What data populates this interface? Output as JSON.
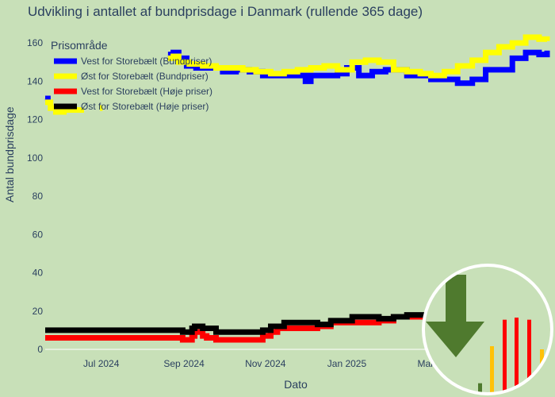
{
  "chart_data": {
    "type": "line",
    "title": "Udvikling i antallet af bundprisdage i Danmark (rullende 365 dage)",
    "xlabel": "Dato",
    "ylabel": "Antal bundprisdage",
    "ylim": [
      0,
      170
    ],
    "y_ticks": [
      0,
      20,
      40,
      60,
      80,
      100,
      120,
      140,
      160
    ],
    "x_ticks": [
      {
        "date": "2024-07-01",
        "label": "Jul 2024"
      },
      {
        "date": "2024-09-01",
        "label": "Sep 2024"
      },
      {
        "date": "2024-11-01",
        "label": "Nov 2024"
      },
      {
        "date": "2025-01-01",
        "label": "Jan 2025"
      },
      {
        "date": "2025-03-01",
        "label": "Mar"
      }
    ],
    "x_range": [
      "2024-05-20",
      "2025-05-31"
    ],
    "grid": false,
    "legend": {
      "title": "Prisområde",
      "placement": "top-left"
    },
    "series": [
      {
        "name": "Vest for Storebælt (Bundpriser)",
        "color": "#0000ff",
        "segments": [
          {
            "x": [
              "2024-05-20",
              "2024-05-22"
            ],
            "y": [
              131,
              130
            ]
          },
          {
            "x": [
              "2024-08-20",
              "2024-08-24",
              "2024-08-28",
              "2024-09-03",
              "2024-09-10",
              "2024-09-20",
              "2024-09-30",
              "2024-10-10",
              "2024-10-20",
              "2024-10-30",
              "2024-11-10",
              "2024-11-20",
              "2024-12-01",
              "2024-12-05",
              "2024-12-15",
              "2024-12-25",
              "2025-01-01",
              "2025-01-10",
              "2025-01-20",
              "2025-01-30",
              "2025-02-05",
              "2025-02-15",
              "2025-02-25",
              "2025-03-05",
              "2025-03-15",
              "2025-03-25",
              "2025-04-05",
              "2025-04-15",
              "2025-04-25",
              "2025-05-05",
              "2025-05-15",
              "2025-05-25",
              "2025-05-31"
            ],
            "y": [
              154,
              155,
              152,
              148,
              147,
              147,
              145,
              146,
              145,
              143,
              143,
              143,
              140,
              143,
              143,
              144,
              147,
              143,
              145,
              146,
              146,
              143,
              143,
              141,
              141,
              139,
              141,
              146,
              146,
              152,
              155,
              154,
              156
            ]
          }
        ]
      },
      {
        "name": "Øst for Storebælt (Bundpriser)",
        "color": "#ffff00",
        "segments": [
          {
            "x": [
              "2024-05-20",
              "2024-05-24",
              "2024-05-28",
              "2024-06-03",
              "2024-06-10",
              "2024-06-16"
            ],
            "y": [
              129,
              126,
              124,
              125,
              125,
              126
            ]
          },
          {
            "x": [
              "2024-06-30",
              "2024-07-02"
            ],
            "y": [
              126,
              126
            ]
          },
          {
            "x": [
              "2024-08-20",
              "2024-08-24",
              "2024-08-28",
              "2024-09-05",
              "2024-09-15",
              "2024-09-25",
              "2024-10-05",
              "2024-10-15",
              "2024-10-25",
              "2024-11-05",
              "2024-11-15",
              "2024-11-25",
              "2024-12-05",
              "2024-12-15",
              "2024-12-25",
              "2025-01-05",
              "2025-01-15",
              "2025-01-25",
              "2025-02-05",
              "2025-02-15",
              "2025-02-25",
              "2025-03-05",
              "2025-03-15",
              "2025-03-25",
              "2025-04-05",
              "2025-04-15",
              "2025-04-25",
              "2025-05-05",
              "2025-05-15",
              "2025-05-25",
              "2025-05-31"
            ],
            "y": [
              152,
              153,
              150,
              149,
              148,
              147,
              147,
              146,
              145,
              144,
              145,
              146,
              147,
              148,
              146,
              150,
              151,
              150,
              146,
              145,
              144,
              143,
              145,
              148,
              151,
              155,
              158,
              160,
              163,
              162,
              161
            ]
          }
        ]
      },
      {
        "name": "Vest for Storebælt (Høje priser)",
        "color": "#ff0000",
        "segments": [
          {
            "x": [
              "2024-05-20",
              "2024-08-30",
              "2024-08-31",
              "2024-09-05",
              "2024-09-07",
              "2024-09-09",
              "2024-09-15",
              "2024-09-18",
              "2024-09-22",
              "2024-09-25",
              "2024-10-01",
              "2024-10-15",
              "2024-10-25",
              "2024-10-30",
              "2024-11-05",
              "2024-11-10",
              "2024-11-25",
              "2024-12-01",
              "2024-12-10",
              "2024-12-20",
              "2025-01-05",
              "2025-01-15",
              "2025-01-25",
              "2025-02-05",
              "2025-02-15",
              "2025-02-25",
              "2025-03-05",
              "2025-03-15"
            ],
            "y": [
              6,
              6,
              5,
              5,
              7,
              9,
              7,
              6,
              6,
              5,
              5,
              5,
              5,
              7,
              9,
              11,
              11,
              11,
              12,
              14,
              14,
              14,
              15,
              17,
              17,
              17,
              18,
              19
            ]
          }
        ]
      },
      {
        "name": "Øst for Storebælt (Høje priser)",
        "color": "#000000",
        "segments": [
          {
            "x": [
              "2024-05-20",
              "2024-08-30",
              "2024-08-31",
              "2024-09-05",
              "2024-09-07",
              "2024-09-09",
              "2024-09-15",
              "2024-09-20",
              "2024-09-25",
              "2024-10-01",
              "2024-10-15",
              "2024-10-25",
              "2024-10-30",
              "2024-11-05",
              "2024-11-15",
              "2024-11-25",
              "2024-12-01",
              "2024-12-10",
              "2024-12-20",
              "2025-01-05",
              "2025-01-15",
              "2025-01-25",
              "2025-02-05",
              "2025-02-15",
              "2025-02-25",
              "2025-03-05",
              "2025-03-15"
            ],
            "y": [
              10,
              10,
              9,
              9,
              11,
              12,
              11,
              11,
              9,
              9,
              9,
              9,
              10,
              12,
              14,
              14,
              14,
              13,
              15,
              17,
              17,
              16,
              17,
              18,
              18,
              18,
              20
            ]
          }
        ]
      }
    ]
  },
  "overlay": {
    "description_icon": "down-arrow-icon",
    "circle_border_color": "#ffffff",
    "circle_fill_color": "#c8e0b8",
    "arrow_color": "#4f7a2e",
    "bar_colors": [
      "#4f7a2e",
      "#ffc107",
      "#ff0000",
      "#ff0000",
      "#ff0000",
      "#ffc107"
    ],
    "bar_values": [
      10,
      45,
      70,
      72,
      70,
      42
    ]
  }
}
